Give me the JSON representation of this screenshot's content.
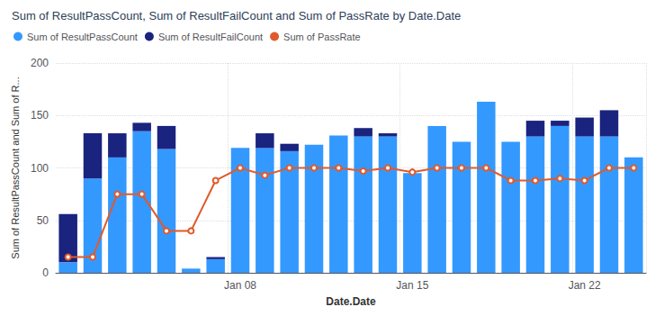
{
  "chart_data": {
    "type": "bar",
    "stacked": true,
    "title": "Sum of ResultPassCount, Sum of ResultFailCount and Sum of PassRate by Date.Date",
    "xlabel": "Date.Date",
    "ylabel": "Sum of ResultPassCount and Sum of R...",
    "categories": [
      null,
      null,
      null,
      null,
      null,
      null,
      null,
      "Jan 08",
      null,
      null,
      null,
      null,
      null,
      null,
      "Jan 15",
      null,
      null,
      null,
      null,
      null,
      null,
      "Jan 22",
      null,
      null
    ],
    "series": [
      {
        "name": "Sum of ResultPassCount",
        "color": "#3399FF",
        "values": [
          10,
          90,
          110,
          135,
          118,
          4,
          13,
          119,
          119,
          116,
          122,
          131,
          130,
          130,
          95,
          140,
          125,
          163,
          125,
          130,
          140,
          130,
          130,
          110
        ]
      },
      {
        "name": "Sum of ResultFailCount",
        "color": "#1a237e",
        "values": [
          46,
          43,
          23,
          8,
          22,
          0,
          2,
          0,
          14,
          7,
          0,
          0,
          8,
          3,
          0,
          0,
          0,
          0,
          0,
          15,
          5,
          18,
          25,
          0
        ]
      },
      {
        "name": "Sum of PassRate",
        "type": "line",
        "color": "#E05A2B",
        "values": [
          15,
          15,
          75,
          75,
          40,
          40,
          88,
          100,
          93,
          100,
          100,
          100,
          97,
          100,
          96,
          100,
          100,
          100,
          88,
          88,
          90,
          88,
          100,
          100
        ]
      }
    ],
    "ylim": [
      0,
      200
    ],
    "yticks": [
      0,
      50,
      100,
      150,
      200
    ],
    "grid": true,
    "legend": "upper left"
  }
}
